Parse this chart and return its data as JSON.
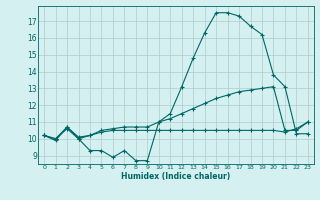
{
  "xlabel": "Humidex (Indice chaleur)",
  "background_color": "#d4f0f0",
  "grid_color": "#b0cccc",
  "line_color": "#006666",
  "xlim": [
    -0.5,
    23.5
  ],
  "ylim": [
    8.5,
    17.9
  ],
  "yticks": [
    9,
    10,
    11,
    12,
    13,
    14,
    15,
    16,
    17
  ],
  "xticks": [
    0,
    1,
    2,
    3,
    4,
    5,
    6,
    7,
    8,
    9,
    10,
    11,
    12,
    13,
    14,
    15,
    16,
    17,
    18,
    19,
    20,
    21,
    22,
    23
  ],
  "line1_x": [
    0,
    1,
    2,
    3,
    4,
    5,
    6,
    7,
    8,
    9,
    10,
    11,
    12,
    13,
    14,
    15,
    16,
    17,
    18,
    19,
    20,
    21,
    22,
    23
  ],
  "line1_y": [
    10.2,
    9.9,
    10.7,
    10.0,
    9.3,
    9.3,
    8.9,
    9.3,
    8.7,
    8.7,
    11.0,
    11.5,
    13.1,
    14.8,
    16.3,
    17.5,
    17.5,
    17.3,
    16.7,
    16.2,
    13.8,
    13.1,
    10.3,
    10.3
  ],
  "line2_x": [
    0,
    1,
    2,
    3,
    4,
    5,
    6,
    7,
    8,
    9,
    10,
    11,
    12,
    13,
    14,
    15,
    16,
    17,
    18,
    19,
    20,
    21,
    22,
    23
  ],
  "line2_y": [
    10.2,
    10.0,
    10.7,
    10.1,
    10.2,
    10.5,
    10.6,
    10.7,
    10.7,
    10.7,
    11.0,
    11.2,
    11.5,
    11.8,
    12.1,
    12.4,
    12.6,
    12.8,
    12.9,
    13.0,
    13.1,
    10.5,
    10.5,
    11.0
  ],
  "line3_x": [
    0,
    1,
    2,
    3,
    4,
    5,
    6,
    7,
    8,
    9,
    10,
    11,
    12,
    13,
    14,
    15,
    16,
    17,
    18,
    19,
    20,
    21,
    22,
    23
  ],
  "line3_y": [
    10.2,
    10.0,
    10.6,
    10.0,
    10.2,
    10.4,
    10.5,
    10.5,
    10.5,
    10.5,
    10.5,
    10.5,
    10.5,
    10.5,
    10.5,
    10.5,
    10.5,
    10.5,
    10.5,
    10.5,
    10.5,
    10.4,
    10.6,
    11.0
  ]
}
